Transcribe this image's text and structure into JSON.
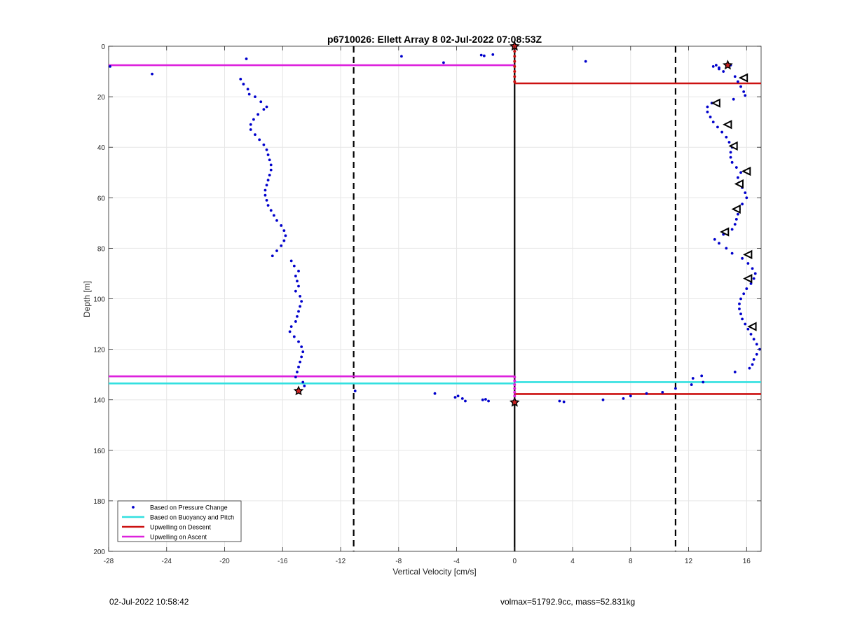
{
  "footer": {
    "timestamp": "02-Jul-2022 10:58:42",
    "info": "volmax=51792.9cc, mass=52.831kg"
  },
  "colors": {
    "pressure": "#0000cc",
    "buoyancy": "#33e0e0",
    "descent": "#cc1111",
    "ascent": "#dd22dd",
    "marker_fill": "#cc2222"
  },
  "chart_data": {
    "type": "scatter",
    "title": "p6710026: Ellett Array 8 02-Jul-2022 07:08:53Z",
    "xlabel": "Vertical Velocity [cm/s]",
    "ylabel": "Depth [m]",
    "xlim": [
      -28,
      17
    ],
    "ylim": [
      0,
      200
    ],
    "y_reversed": true,
    "grid": true,
    "xticks": [
      -28,
      -24,
      -20,
      -16,
      -12,
      -8,
      -4,
      0,
      4,
      8,
      12,
      16
    ],
    "yticks": [
      0,
      20,
      40,
      60,
      80,
      100,
      120,
      140,
      160,
      180,
      200
    ],
    "legend_position": "bottom-left",
    "legend": [
      {
        "label": "Based on Pressure Change",
        "style": "dot",
        "color_key": "pressure"
      },
      {
        "label": "Based on Buoyancy and Pitch",
        "style": "line",
        "color_key": "buoyancy"
      },
      {
        "label": "Upwelling on Descent",
        "style": "line",
        "color_key": "descent"
      },
      {
        "label": "Upwelling on Ascent",
        "style": "line",
        "color_key": "ascent"
      }
    ],
    "vlines_dashed": [
      -11.1,
      11.1
    ],
    "vline_solid": 0,
    "series": [
      {
        "name": "Based on Pressure Change",
        "points": [
          [
            -27.9,
            8
          ],
          [
            -25,
            11
          ],
          [
            -18.5,
            5
          ],
          [
            -7.8,
            4
          ],
          [
            -4.9,
            6.5
          ],
          [
            -2.3,
            3.5
          ],
          [
            -2.1,
            3.8
          ],
          [
            -1.5,
            3.3
          ],
          [
            4.9,
            6
          ],
          [
            -18.9,
            13
          ],
          [
            -18.7,
            15
          ],
          [
            -18.4,
            17
          ],
          [
            -18.3,
            19
          ],
          [
            -17.9,
            20
          ],
          [
            -17.5,
            22
          ],
          [
            -17.1,
            24
          ],
          [
            -17.3,
            25
          ],
          [
            -17.7,
            27
          ],
          [
            -18.0,
            29
          ],
          [
            -18.2,
            31
          ],
          [
            -18.2,
            33
          ],
          [
            -17.9,
            35
          ],
          [
            -17.6,
            37
          ],
          [
            -17.3,
            39
          ],
          [
            -17.1,
            41
          ],
          [
            -17.0,
            43
          ],
          [
            -16.9,
            45
          ],
          [
            -16.8,
            47
          ],
          [
            -16.8,
            49
          ],
          [
            -16.9,
            51
          ],
          [
            -17.0,
            53
          ],
          [
            -17.1,
            55
          ],
          [
            -17.2,
            57
          ],
          [
            -17.2,
            59
          ],
          [
            -17.1,
            61
          ],
          [
            -17.0,
            63
          ],
          [
            -16.8,
            65
          ],
          [
            -16.6,
            67
          ],
          [
            -16.4,
            69
          ],
          [
            -16.1,
            71
          ],
          [
            -15.9,
            73
          ],
          [
            -15.8,
            75
          ],
          [
            -15.9,
            77
          ],
          [
            -16.1,
            79
          ],
          [
            -16.4,
            81
          ],
          [
            -16.7,
            83
          ],
          [
            -15.4,
            85
          ],
          [
            -15.2,
            87
          ],
          [
            -14.9,
            89
          ],
          [
            -15.1,
            91
          ],
          [
            -15.0,
            93
          ],
          [
            -14.9,
            95
          ],
          [
            -15.1,
            97
          ],
          [
            -14.8,
            99
          ],
          [
            -14.7,
            101
          ],
          [
            -14.8,
            103
          ],
          [
            -14.9,
            105
          ],
          [
            -15.0,
            107
          ],
          [
            -15.1,
            109
          ],
          [
            -15.4,
            111
          ],
          [
            -15.5,
            113
          ],
          [
            -15.2,
            115
          ],
          [
            -14.9,
            117
          ],
          [
            -14.7,
            119
          ],
          [
            -14.6,
            121
          ],
          [
            -14.7,
            123
          ],
          [
            -14.8,
            125
          ],
          [
            -14.9,
            127
          ],
          [
            -15.0,
            129
          ],
          [
            -15.1,
            131
          ],
          [
            -14.6,
            133
          ],
          [
            -14.5,
            134.5
          ],
          [
            -11.0,
            136.5
          ],
          [
            -5.5,
            137.5
          ],
          [
            -4.1,
            139
          ],
          [
            -3.9,
            138.5
          ],
          [
            -3.6,
            139.5
          ],
          [
            -3.4,
            140.5
          ],
          [
            -2.2,
            140
          ],
          [
            -2.0,
            139.8
          ],
          [
            -1.8,
            140.5
          ],
          [
            3.1,
            140.5
          ],
          [
            3.4,
            140.8
          ],
          [
            6.1,
            140
          ],
          [
            7.5,
            139.5
          ],
          [
            8.0,
            138.5
          ],
          [
            9.1,
            137.5
          ],
          [
            10.2,
            137
          ],
          [
            11.1,
            135.5
          ],
          [
            12.2,
            134
          ],
          [
            12.3,
            131.5
          ],
          [
            13.0,
            133
          ],
          [
            12.9,
            130.5
          ],
          [
            15.2,
            129
          ],
          [
            16.2,
            127.5
          ],
          [
            16.4,
            126
          ],
          [
            16.5,
            124
          ],
          [
            16.7,
            122
          ],
          [
            16.9,
            120
          ],
          [
            16.7,
            118
          ],
          [
            16.5,
            116
          ],
          [
            16.3,
            114
          ],
          [
            16.1,
            112
          ],
          [
            15.9,
            110
          ],
          [
            15.7,
            108
          ],
          [
            15.6,
            106
          ],
          [
            15.5,
            104
          ],
          [
            15.5,
            102
          ],
          [
            15.6,
            100
          ],
          [
            15.8,
            98
          ],
          [
            16.0,
            96
          ],
          [
            16.3,
            94
          ],
          [
            16.5,
            92
          ],
          [
            16.6,
            90
          ],
          [
            16.4,
            88
          ],
          [
            16.1,
            86
          ],
          [
            15.7,
            84
          ],
          [
            15.0,
            82
          ],
          [
            14.6,
            80
          ],
          [
            14.1,
            78
          ],
          [
            13.8,
            76.5
          ],
          [
            14.4,
            74.5
          ],
          [
            15.0,
            72.5
          ],
          [
            15.2,
            70.5
          ],
          [
            15.3,
            68.5
          ],
          [
            15.4,
            66.5
          ],
          [
            15.5,
            64.5
          ],
          [
            15.7,
            62.5
          ],
          [
            16.0,
            60
          ],
          [
            15.9,
            58
          ],
          [
            15.7,
            56
          ],
          [
            15.5,
            54
          ],
          [
            15.4,
            52
          ],
          [
            15.6,
            50
          ],
          [
            15.3,
            48
          ],
          [
            15.0,
            46
          ],
          [
            14.9,
            44
          ],
          [
            14.9,
            42
          ],
          [
            15.0,
            40
          ],
          [
            14.8,
            38
          ],
          [
            14.6,
            36
          ],
          [
            14.3,
            34
          ],
          [
            14.0,
            32
          ],
          [
            13.7,
            30
          ],
          [
            13.5,
            28
          ],
          [
            13.3,
            26
          ],
          [
            13.3,
            24
          ],
          [
            13.6,
            22.5
          ],
          [
            15.1,
            21
          ],
          [
            15.9,
            19.5
          ],
          [
            15.8,
            18
          ],
          [
            15.6,
            16
          ],
          [
            15.4,
            14
          ],
          [
            15.2,
            12
          ],
          [
            14.4,
            10
          ],
          [
            14.1,
            8.5
          ],
          [
            13.7,
            8
          ],
          [
            14.9,
            7.5
          ],
          [
            14.1,
            9
          ],
          [
            13.9,
            7.5
          ]
        ]
      },
      {
        "name": "Upwelling on Descent",
        "segments": [
          {
            "depth": 14.7,
            "x0": 0,
            "x1": 17,
            "label": ""
          },
          {
            "depth": 137.7,
            "x0": 0,
            "x1": 17,
            "label": ""
          }
        ]
      },
      {
        "name": "Upwelling on Ascent",
        "segments": [
          {
            "depth": 7.5,
            "x0": -28,
            "x1": 0,
            "label": ""
          },
          {
            "depth": 130.7,
            "x0": -28,
            "x1": 0,
            "label": ""
          }
        ]
      },
      {
        "name": "Based on Buoyancy and Pitch",
        "segments": [
          {
            "depth": 133.5,
            "x0": -28,
            "x1": 0,
            "label": ""
          },
          {
            "depth": 133.0,
            "x0": 0,
            "x1": 17,
            "label": ""
          }
        ]
      }
    ],
    "triangle_markers": [
      [
        15.8,
        12.5
      ],
      [
        13.9,
        22.5
      ],
      [
        14.7,
        31
      ],
      [
        15.1,
        39.5
      ],
      [
        16.0,
        49.5
      ],
      [
        15.5,
        54.5
      ],
      [
        15.3,
        64.5
      ],
      [
        14.5,
        73.5
      ],
      [
        16.1,
        82.5
      ],
      [
        16.1,
        92
      ],
      [
        16.4,
        111
      ]
    ],
    "star_markers": [
      [
        0,
        0
      ],
      [
        14.7,
        7.5
      ],
      [
        -14.9,
        136.5
      ],
      [
        0,
        141
      ]
    ],
    "zero_axis_dots": {
      "descent": [
        [
          0,
          2
        ],
        [
          0,
          4
        ],
        [
          0,
          6
        ],
        [
          0,
          8
        ],
        [
          0,
          10
        ],
        [
          0,
          12
        ],
        [
          0,
          14
        ]
      ],
      "ascent": [
        [
          0,
          131
        ],
        [
          0,
          132.5
        ],
        [
          0,
          134
        ],
        [
          0,
          135.5
        ],
        [
          0,
          137
        ],
        [
          0,
          138.5
        ],
        [
          0,
          140
        ]
      ]
    }
  }
}
